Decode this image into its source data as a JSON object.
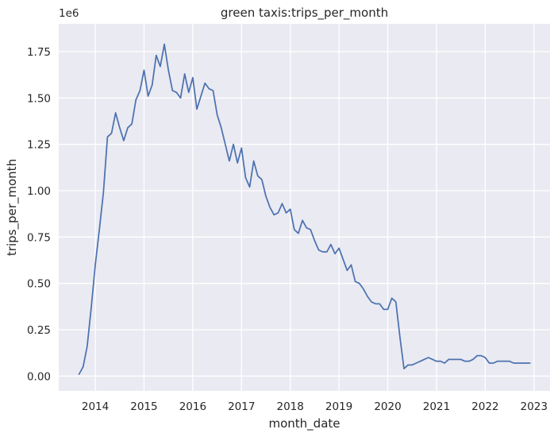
{
  "chart_data": {
    "type": "line",
    "title": "green taxis:trips_per_month",
    "xlabel": "month_date",
    "ylabel": "trips_per_month",
    "y_offset_label": "1e6",
    "ylim": [
      -0.08,
      1.9
    ],
    "xlim": [
      2013.25,
      2023.33
    ],
    "x_ticks": [
      2014,
      2015,
      2016,
      2017,
      2018,
      2019,
      2020,
      2021,
      2022,
      2023
    ],
    "x_tick_labels": [
      "2014",
      "2015",
      "2016",
      "2017",
      "2018",
      "2019",
      "2020",
      "2021",
      "2022",
      "2023"
    ],
    "y_ticks": [
      0,
      0.25,
      0.5,
      0.75,
      1.0,
      1.25,
      1.5,
      1.75
    ],
    "y_tick_labels": [
      "0.00",
      "0.25",
      "0.50",
      "0.75",
      "1.00",
      "1.25",
      "1.50",
      "1.75"
    ],
    "grid": true,
    "colors": {
      "background": "#eaeaf2",
      "grid": "#ffffff",
      "line": "#4c72b0"
    },
    "series": [
      {
        "x": [
          "2013-09",
          "2013-10",
          "2013-11",
          "2013-12",
          "2014-01",
          "2014-02",
          "2014-03",
          "2014-04",
          "2014-05",
          "2014-06",
          "2014-07",
          "2014-08",
          "2014-09",
          "2014-10",
          "2014-11",
          "2014-12",
          "2015-01",
          "2015-02",
          "2015-03",
          "2015-04",
          "2015-05",
          "2015-06",
          "2015-07",
          "2015-08",
          "2015-09",
          "2015-10",
          "2015-11",
          "2015-12",
          "2016-01",
          "2016-02",
          "2016-03",
          "2016-04",
          "2016-05",
          "2016-06",
          "2016-07",
          "2016-08",
          "2016-09",
          "2016-10",
          "2016-11",
          "2016-12",
          "2017-01",
          "2017-02",
          "2017-03",
          "2017-04",
          "2017-05",
          "2017-06",
          "2017-07",
          "2017-08",
          "2017-09",
          "2017-10",
          "2017-11",
          "2017-12",
          "2018-01",
          "2018-02",
          "2018-03",
          "2018-04",
          "2018-05",
          "2018-06",
          "2018-07",
          "2018-08",
          "2018-09",
          "2018-10",
          "2018-11",
          "2018-12",
          "2019-01",
          "2019-02",
          "2019-03",
          "2019-04",
          "2019-05",
          "2019-06",
          "2019-07",
          "2019-08",
          "2019-09",
          "2019-10",
          "2019-11",
          "2019-12",
          "2020-01",
          "2020-02",
          "2020-03",
          "2020-04",
          "2020-05",
          "2020-06",
          "2020-07",
          "2020-08",
          "2020-09",
          "2020-10",
          "2020-11",
          "2020-12",
          "2021-01",
          "2021-02",
          "2021-03",
          "2021-04",
          "2021-05",
          "2021-06",
          "2021-07",
          "2021-08",
          "2021-09",
          "2021-10",
          "2021-11",
          "2021-12",
          "2022-01",
          "2022-02",
          "2022-03",
          "2022-04",
          "2022-05",
          "2022-06",
          "2022-07",
          "2022-08",
          "2022-09",
          "2022-10",
          "2022-11",
          "2022-12"
        ],
        "values": [
          0.01,
          0.05,
          0.16,
          0.37,
          0.6,
          0.79,
          0.99,
          1.29,
          1.31,
          1.42,
          1.34,
          1.27,
          1.34,
          1.36,
          1.49,
          1.54,
          1.65,
          1.51,
          1.57,
          1.73,
          1.67,
          1.79,
          1.65,
          1.54,
          1.53,
          1.5,
          1.63,
          1.53,
          1.61,
          1.44,
          1.51,
          1.58,
          1.55,
          1.54,
          1.41,
          1.34,
          1.25,
          1.16,
          1.25,
          1.15,
          1.23,
          1.07,
          1.02,
          1.16,
          1.08,
          1.06,
          0.97,
          0.91,
          0.87,
          0.88,
          0.93,
          0.88,
          0.9,
          0.79,
          0.77,
          0.84,
          0.8,
          0.79,
          0.73,
          0.68,
          0.67,
          0.67,
          0.71,
          0.66,
          0.69,
          0.63,
          0.57,
          0.6,
          0.51,
          0.5,
          0.47,
          0.43,
          0.4,
          0.39,
          0.39,
          0.36,
          0.36,
          0.42,
          0.4,
          0.21,
          0.04,
          0.06,
          0.06,
          0.07,
          0.08,
          0.09,
          0.1,
          0.09,
          0.08,
          0.08,
          0.07,
          0.09,
          0.09,
          0.09,
          0.09,
          0.08,
          0.08,
          0.09,
          0.11,
          0.11,
          0.1,
          0.07,
          0.07,
          0.08,
          0.08,
          0.08,
          0.08,
          0.07,
          0.07,
          0.07,
          0.07,
          0.07
        ]
      }
    ]
  }
}
